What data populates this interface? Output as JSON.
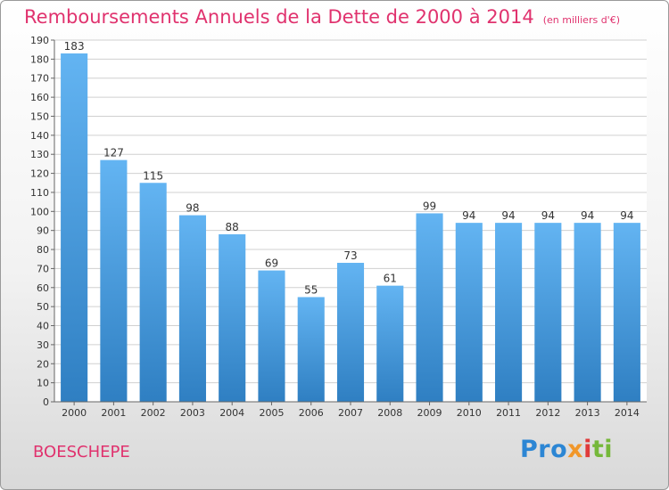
{
  "colors": {
    "title": "#e0326e",
    "bar_top": "#63b4f2",
    "bar_bottom": "#2f7fc2",
    "grid": "#d0d0d0",
    "axis_text": "#333333"
  },
  "city": "BOESCHEPE",
  "logo": "Proxiti",
  "chart_data": {
    "type": "bar",
    "title": "Remboursements Annuels de la Dette de 2000 à 2014",
    "subtitle": "(en milliers d'€)",
    "xlabel": "",
    "ylabel": "",
    "categories": [
      "2000",
      "2001",
      "2002",
      "2003",
      "2004",
      "2005",
      "2006",
      "2007",
      "2008",
      "2009",
      "2010",
      "2011",
      "2012",
      "2013",
      "2014"
    ],
    "values": [
      183,
      127,
      115,
      98,
      88,
      69,
      55,
      73,
      61,
      99,
      94,
      94,
      94,
      94,
      94
    ],
    "ylim": [
      0,
      190
    ],
    "yticks": [
      0,
      10,
      20,
      30,
      40,
      50,
      60,
      70,
      80,
      90,
      100,
      110,
      120,
      130,
      140,
      150,
      160,
      170,
      180,
      190
    ],
    "grid": true,
    "legend": "none"
  }
}
